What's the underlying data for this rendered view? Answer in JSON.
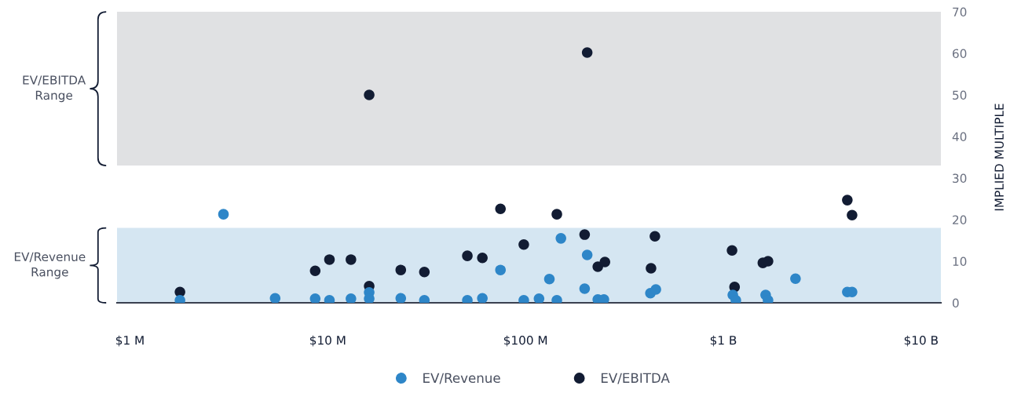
{
  "chart_data": {
    "type": "scatter",
    "x": [
      1790000,
      2970000,
      5420000,
      8640000,
      10200000,
      13100000,
      16200000,
      16200000,
      23400000,
      30800000,
      50800000,
      60500000,
      74700000,
      98000000,
      117000000,
      132000000,
      144000000,
      151000000,
      199000000,
      205000000,
      232000000,
      249000000,
      428000000,
      456000000,
      1117000000,
      1157000000,
      1637000000,
      1683000000,
      2317000000,
      4236000000,
      4477000000
    ],
    "series": [
      {
        "name": "EV/Revenue",
        "color": "#2e86c8",
        "values": [
          0.6,
          21.3,
          1.1,
          1.0,
          0.6,
          1.0,
          2.5,
          1.0,
          1.1,
          0.6,
          0.6,
          1.1,
          7.9,
          0.6,
          1.0,
          5.7,
          0.6,
          15.5,
          3.4,
          11.5,
          0.8,
          0.8,
          2.3,
          3.2,
          1.9,
          0.6,
          1.9,
          0.6,
          5.8,
          2.6,
          2.6
        ]
      },
      {
        "name": "EV/EBITDA",
        "color": "#121c33",
        "x": [
          1790000,
          8640000,
          10200000,
          13100000,
          16200000,
          16200000,
          23400000,
          30800000,
          50800000,
          60500000,
          74700000,
          98000000,
          144000000,
          199000000,
          205000000,
          232000000,
          252000000,
          431000000,
          451000000,
          1107000000,
          1140000000,
          1585000000,
          1683000000,
          4236000000,
          4477000000
        ],
        "values": [
          2.6,
          7.7,
          10.4,
          10.4,
          50,
          4.0,
          7.9,
          7.4,
          11.3,
          10.8,
          22.6,
          14.0,
          21.3,
          16.4,
          60.2,
          8.7,
          9.8,
          8.3,
          16.0,
          12.6,
          3.8,
          9.6,
          10.0,
          24.7,
          21.1
        ]
      }
    ],
    "log": "x",
    "xlim": [
      860000,
      12600000000
    ],
    "xticks": [
      {
        "value": 1000000,
        "label": "$1 M"
      },
      {
        "value": 10000000,
        "label": "$10 M"
      },
      {
        "value": 100000000,
        "label": "$100 M"
      },
      {
        "value": 1000000000,
        "label": "$1 B"
      },
      {
        "value": 10000000000,
        "label": "$10 B"
      }
    ],
    "ylim": [
      0,
      70
    ],
    "yticks": [
      0,
      10,
      20,
      30,
      40,
      50,
      60,
      70
    ],
    "ylabel": "IMPLIED MULTIPLE",
    "bands": [
      {
        "axis": "y",
        "from": 33,
        "to": 70,
        "label": "EV/EBITDA\nRange",
        "color": "#e0e1e3"
      },
      {
        "axis": "y",
        "from": 0,
        "to": 18,
        "label": "EV/Revenue\nRange",
        "color": "#d5e6f2"
      }
    ],
    "grid": false,
    "legend": "bottom",
    "marker": "circle"
  }
}
